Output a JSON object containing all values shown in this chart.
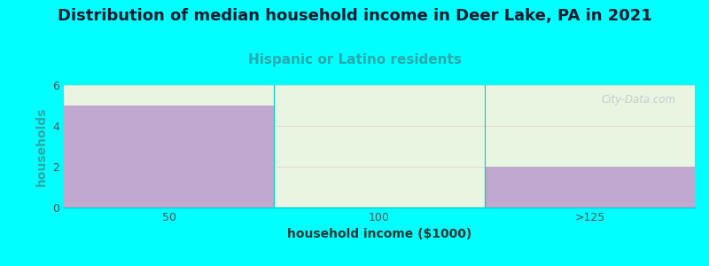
{
  "title": "Distribution of median household income in Deer Lake, PA in 2021",
  "subtitle": "Hispanic or Latino residents",
  "xlabel": "household income ($1000)",
  "ylabel": "households",
  "categories": [
    "50",
    "100",
    ">125"
  ],
  "values": [
    5,
    0,
    2
  ],
  "bar_color": "#C0A8D0",
  "background_color": "#00FFFF",
  "plot_bg_color": "#E8F5E0",
  "title_color": "#1A1A2E",
  "subtitle_color": "#2AAAAA",
  "ylabel_color": "#2AAAAA",
  "xlabel_color": "#333333",
  "ylim": [
    0,
    6
  ],
  "yticks": [
    0,
    2,
    4,
    6
  ],
  "watermark": "City-Data.com",
  "title_fontsize": 13,
  "subtitle_fontsize": 11,
  "label_fontsize": 10
}
